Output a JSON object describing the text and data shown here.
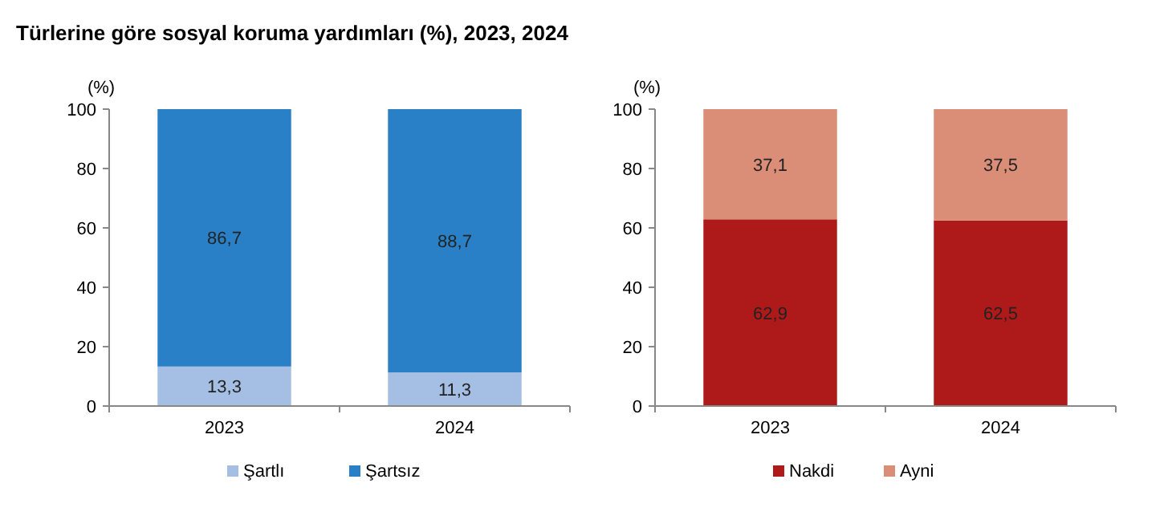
{
  "chart_data": [
    {
      "type": "bar",
      "title": "Türlerine göre sosyal koruma yardımları (%), 2023, 2024",
      "ylabel": "(%)",
      "categories": [
        "2023",
        "2024"
      ],
      "stacked": true,
      "ylim": [
        0,
        100
      ],
      "yticks": [
        0,
        20,
        40,
        60,
        80,
        100
      ],
      "grid": false,
      "legend": "bottom",
      "series": [
        {
          "name": "Şartlı",
          "color": "#a5bfe4",
          "values": [
            13.3,
            11.3
          ],
          "value_labels": [
            "13,3",
            "11,3"
          ]
        },
        {
          "name": "Şartsız",
          "color": "#2a80c6",
          "values": [
            86.7,
            88.7
          ],
          "value_labels": [
            "86,7",
            "88,7"
          ]
        }
      ]
    },
    {
      "type": "bar",
      "ylabel": "(%)",
      "categories": [
        "2023",
        "2024"
      ],
      "stacked": true,
      "ylim": [
        0,
        100
      ],
      "yticks": [
        0,
        20,
        40,
        60,
        80,
        100
      ],
      "grid": false,
      "legend": "bottom",
      "series": [
        {
          "name": "Nakdi",
          "color": "#ae1a1a",
          "values": [
            62.9,
            62.5
          ],
          "value_labels": [
            "62,9",
            "62,5"
          ]
        },
        {
          "name": "Ayni",
          "color": "#da8e77",
          "values": [
            37.1,
            37.5
          ],
          "value_labels": [
            "37,1",
            "37,5"
          ]
        }
      ]
    }
  ]
}
